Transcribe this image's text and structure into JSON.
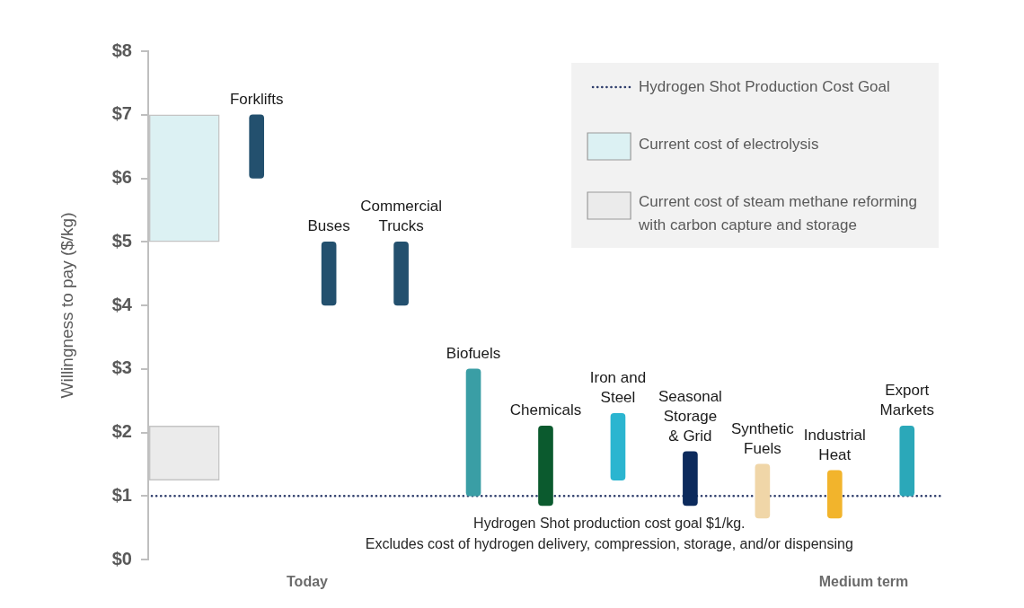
{
  "chart_data": {
    "type": "bar",
    "ylabel": "Willingness to pay ($/kg)",
    "categories": [
      null,
      "Forklifts",
      "Buses",
      "Commercial Trucks",
      "Biofuels",
      "Chemicals",
      "Iron and Steel",
      "Seasonal Storage & Grid",
      "Synthetic Fuels",
      "Industrial Heat",
      "Export Markets"
    ],
    "series": [
      {
        "colors": [
          null,
          "#23506e",
          "#23506e",
          "#23506e",
          "#3a9ea5",
          "#0b5a2e",
          "#2bb5d0",
          "#0c2a5c",
          "#f0d6a8",
          "#f2b42c",
          "#2ba8b9"
        ],
        "values": [
          null,
          1,
          1,
          1,
          2,
          1.25,
          1.05,
          0.85,
          0.85,
          0.75,
          1.1
        ],
        "base": [
          null,
          6,
          4,
          4,
          1,
          0.85,
          1.25,
          0.85,
          0.65,
          0.65,
          1
        ]
      },
      {
        "name": "Current cost of electrolysis",
        "color": "#dcf1f3",
        "values": [
          2,
          null,
          null,
          null,
          null,
          null,
          null,
          null,
          null,
          null,
          null
        ],
        "base": [
          5,
          null,
          null,
          null,
          null,
          null,
          null,
          null,
          null,
          null,
          null
        ]
      },
      {
        "name": "Current cost of steam methane reforming with carbon capture and storage",
        "color": "#ebebeb",
        "values": [
          0.85,
          null,
          null,
          null,
          null,
          null,
          null,
          null,
          null,
          null,
          null
        ],
        "base": [
          1.25,
          null,
          null,
          null,
          null,
          null,
          null,
          null,
          null,
          null,
          null
        ]
      }
    ],
    "ylim": [
      0,
      8
    ],
    "yticks": [
      {
        "value": 0,
        "label": "$0"
      },
      {
        "value": 1,
        "label": "$1"
      },
      {
        "value": 2,
        "label": "$2"
      },
      {
        "value": 3,
        "label": "$3"
      },
      {
        "value": 4,
        "label": "$4"
      },
      {
        "value": 5,
        "label": "$5"
      },
      {
        "value": 6,
        "label": "$6"
      },
      {
        "value": 7,
        "label": "$7"
      },
      {
        "value": 8,
        "label": "$8"
      }
    ],
    "ref_lines": [
      {
        "axis": "y",
        "value": 1,
        "label": "Hydrogen Shot Production Cost Goal",
        "color": "#2e3d6b",
        "line_style": "dotted"
      }
    ],
    "legend": "top right",
    "grid": false,
    "annotations": [
      "Today",
      "Medium term",
      {
        "text": "Hydrogen Shot production cost goal $1/kg.",
        "y": 1
      },
      "Excludes cost of hydrogen delivery, compression, storage, and/or dispensing"
    ]
  }
}
